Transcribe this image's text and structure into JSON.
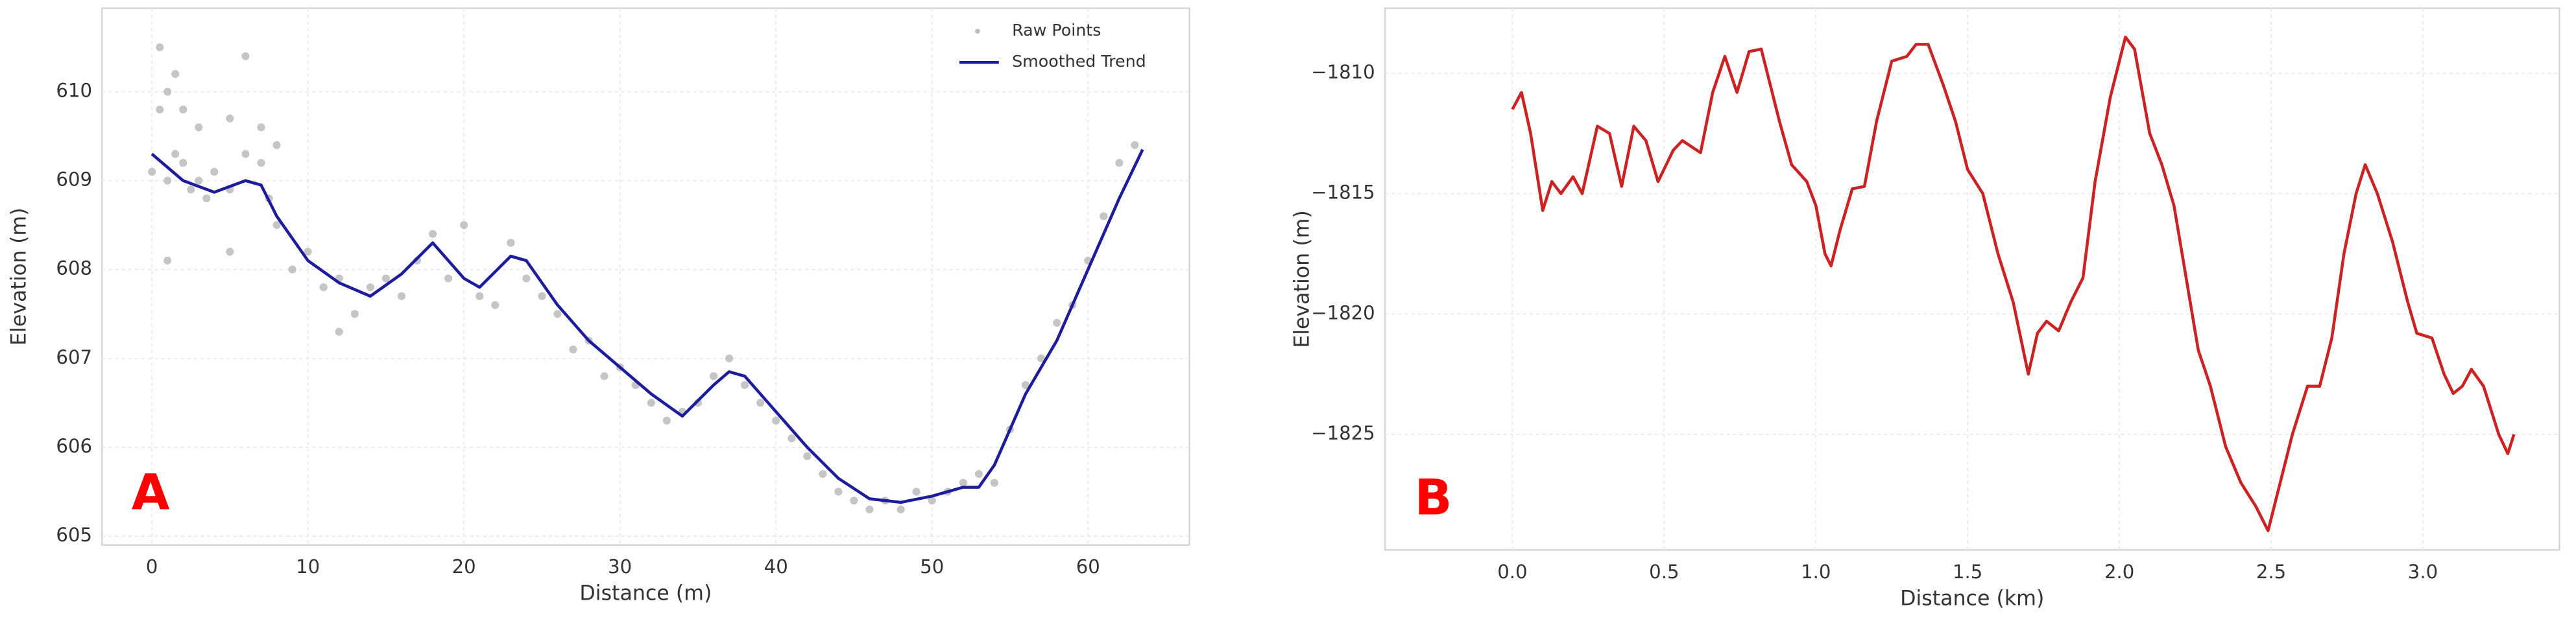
{
  "chart_data": [
    {
      "type": "scatter",
      "panel_label": "A",
      "x_label": "Distance (m)",
      "y_label": "Elevation (m)",
      "xlim": [
        -3.2,
        66.5
      ],
      "ylim": [
        604.9,
        610.94
      ],
      "xticks": [
        0,
        10,
        20,
        30,
        40,
        50,
        60
      ],
      "yticks": [
        605,
        606,
        607,
        608,
        609,
        610
      ],
      "grid": true,
      "legend": "upper right",
      "series": [
        {
          "name": "Raw Points",
          "type": "scatter",
          "color": "#bbbbbb",
          "x": [
            0,
            0.5,
            1,
            1.5,
            2,
            2.5,
            3,
            3.5,
            4,
            5,
            6,
            7,
            7.5,
            8,
            9,
            10,
            11,
            12,
            13,
            14,
            15,
            16,
            17,
            18,
            19,
            20,
            21,
            22,
            23,
            24,
            25,
            26,
            27,
            28,
            29,
            30,
            31,
            32,
            33,
            34,
            35,
            36,
            37,
            38,
            39,
            40,
            41,
            42,
            43,
            44,
            45,
            46,
            47,
            48,
            49,
            50,
            51,
            52,
            53,
            54,
            55,
            56,
            57,
            58,
            59,
            60,
            61,
            62,
            63,
            0.5,
            1,
            1.5,
            2,
            3,
            5,
            6,
            7,
            8,
            1,
            12,
            5
          ],
          "values": [
            609.1,
            609.8,
            609.0,
            609.3,
            609.2,
            608.9,
            609.0,
            608.8,
            609.1,
            608.9,
            609.3,
            609.2,
            608.8,
            608.5,
            608.0,
            608.2,
            607.8,
            607.9,
            607.5,
            607.8,
            607.9,
            607.7,
            608.1,
            608.4,
            607.9,
            608.5,
            607.7,
            607.6,
            608.3,
            607.9,
            607.7,
            607.5,
            607.1,
            607.2,
            606.8,
            606.9,
            606.7,
            606.5,
            606.3,
            606.4,
            606.5,
            606.8,
            607.0,
            606.7,
            606.5,
            606.3,
            606.1,
            605.9,
            605.7,
            605.5,
            605.4,
            605.3,
            605.4,
            605.3,
            605.5,
            605.4,
            605.5,
            605.6,
            605.7,
            605.6,
            606.2,
            606.7,
            607.0,
            607.4,
            607.6,
            608.1,
            608.6,
            609.2,
            609.4,
            610.5,
            608.1,
            610.2,
            609.8,
            609.6,
            609.7,
            610.4,
            609.6,
            609.4,
            610.0,
            607.3,
            608.2
          ]
        },
        {
          "name": "Smoothed Trend",
          "type": "line",
          "color": "#1c1c9c",
          "x": [
            0,
            2,
            4,
            6,
            7,
            8,
            10,
            12,
            14,
            16,
            18,
            20,
            21,
            23,
            24,
            26,
            28,
            30,
            32,
            34,
            36,
            37,
            38,
            40,
            42,
            44,
            46,
            48,
            50,
            52,
            53,
            54,
            56,
            58,
            60,
            62,
            63.5
          ],
          "values": [
            609.3,
            609.0,
            608.87,
            609.0,
            608.95,
            608.6,
            608.1,
            607.85,
            607.7,
            607.95,
            608.3,
            607.9,
            607.8,
            608.15,
            608.1,
            607.6,
            607.2,
            606.9,
            606.6,
            606.35,
            606.7,
            606.85,
            606.8,
            606.4,
            606.0,
            605.65,
            605.42,
            605.38,
            605.45,
            605.55,
            605.55,
            605.8,
            606.6,
            607.2,
            608.0,
            608.8,
            609.35
          ]
        }
      ]
    },
    {
      "type": "line",
      "panel_label": "B",
      "x_label": "Distance (km)",
      "y_label": "Elevation (m)",
      "xlim": [
        -0.42,
        3.45
      ],
      "ylim": [
        -1829.8,
        -1807.3
      ],
      "xticks": [
        {
          "value": 0,
          "label": "0.0"
        },
        0.5,
        {
          "value": 1,
          "label": "1.0"
        },
        1.5,
        {
          "value": 2,
          "label": "2.0"
        },
        2.5,
        {
          "value": 3,
          "label": "3.0"
        }
      ],
      "yticks": [
        {
          "value": -1810,
          "label": "−1810"
        },
        {
          "value": -1815,
          "label": "−1815"
        },
        {
          "value": -1820,
          "label": "−1820"
        },
        {
          "value": -1825,
          "label": "−1825"
        }
      ],
      "grid": true,
      "series": [
        {
          "type": "line",
          "color": "#cc2222",
          "x": [
            0,
            0.03,
            0.06,
            0.1,
            0.13,
            0.16,
            0.2,
            0.23,
            0.28,
            0.32,
            0.36,
            0.4,
            0.44,
            0.48,
            0.53,
            0.56,
            0.62,
            0.66,
            0.7,
            0.74,
            0.78,
            0.82,
            0.88,
            0.92,
            0.97,
            1.0,
            1.03,
            1.05,
            1.08,
            1.12,
            1.16,
            1.2,
            1.25,
            1.3,
            1.33,
            1.37,
            1.42,
            1.46,
            1.5,
            1.55,
            1.6,
            1.65,
            1.7,
            1.73,
            1.76,
            1.8,
            1.84,
            1.88,
            1.92,
            1.97,
            2.02,
            2.05,
            2.1,
            2.14,
            2.18,
            2.22,
            2.26,
            2.3,
            2.35,
            2.4,
            2.45,
            2.49,
            2.52,
            2.57,
            2.62,
            2.66,
            2.7,
            2.74,
            2.78,
            2.81,
            2.85,
            2.9,
            2.95,
            2.98,
            3.03,
            3.07,
            3.1,
            3.13,
            3.16,
            3.2,
            3.25,
            3.28,
            3.3
          ],
          "values": [
            -1811.5,
            -1810.8,
            -1812.5,
            -1815.7,
            -1814.5,
            -1815,
            -1814.3,
            -1815,
            -1812.2,
            -1812.5,
            -1814.7,
            -1812.2,
            -1812.8,
            -1814.5,
            -1813.2,
            -1812.8,
            -1813.3,
            -1810.8,
            -1809.3,
            -1810.8,
            -1809.1,
            -1809,
            -1812,
            -1813.8,
            -1814.5,
            -1815.5,
            -1817.5,
            -1818,
            -1816.5,
            -1814.8,
            -1814.7,
            -1812,
            -1809.5,
            -1809.3,
            -1808.8,
            -1808.8,
            -1810.5,
            -1812,
            -1814,
            -1815,
            -1817.5,
            -1819.5,
            -1822.5,
            -1820.8,
            -1820.3,
            -1820.7,
            -1819.5,
            -1818.5,
            -1814.5,
            -1811,
            -1808.5,
            -1809,
            -1812.5,
            -1813.8,
            -1815.5,
            -1818.5,
            -1821.5,
            -1823,
            -1825.5,
            -1827,
            -1828,
            -1829,
            -1827.5,
            -1825,
            -1823,
            -1823,
            -1821,
            -1817.5,
            -1815,
            -1813.8,
            -1815,
            -1817,
            -1819.5,
            -1820.8,
            -1821,
            -1822.5,
            -1823.3,
            -1823,
            -1822.3,
            -1823,
            -1825,
            -1825.8,
            -1825
          ]
        }
      ]
    }
  ]
}
